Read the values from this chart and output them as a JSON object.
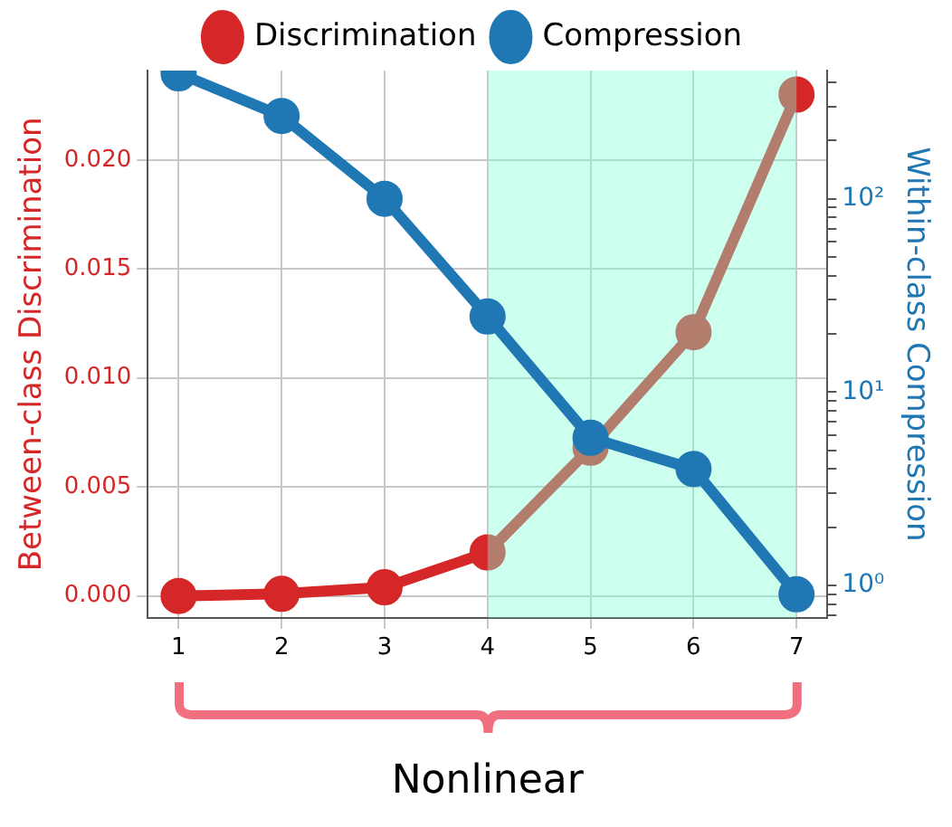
{
  "chart_data": {
    "type": "line",
    "xlabel": null,
    "ylabel": "Between-class Discrimination",
    "y2label": "Within-class Compression",
    "x": [
      1,
      2,
      3,
      4,
      5,
      6,
      7
    ],
    "series": [
      {
        "name": "Discrimination",
        "color": "#d62728",
        "values": [
          0.0,
          0.0001,
          0.0004,
          0.002,
          0.0068,
          0.0121,
          0.023
        ]
      },
      {
        "name": "Compression",
        "color": "#1f77b4",
        "axis": "y2",
        "values": [
          445,
          268,
          100,
          24.6,
          5.8,
          4.0,
          0.9
        ]
      }
    ],
    "xlim": [
      0.7,
      7.3
    ],
    "xticks": [
      1,
      2,
      3,
      4,
      5,
      6,
      7
    ],
    "ylim": [
      -0.001,
      0.0241
    ],
    "yticks": [
      {
        "value": 0,
        "label": "0.000"
      },
      {
        "value": 0.005,
        "label": "0.005"
      },
      {
        "value": 0.01,
        "label": "0.010"
      },
      {
        "value": 0.015,
        "label": "0.015"
      },
      {
        "value": 0.02,
        "label": "0.020"
      }
    ],
    "y2lim": [
      0.68,
      460
    ],
    "y2ticks": [
      {
        "value": 0.7,
        "label": null
      },
      {
        "value": 0.8,
        "label": null
      },
      {
        "value": 0.9,
        "label": null
      },
      {
        "value": 1,
        "label": "10⁰"
      },
      {
        "value": 2,
        "label": null
      },
      {
        "value": 3,
        "label": null
      },
      {
        "value": 4,
        "label": null
      },
      {
        "value": 5,
        "label": null
      },
      {
        "value": 6,
        "label": null
      },
      {
        "value": 7,
        "label": null
      },
      {
        "value": 8,
        "label": null
      },
      {
        "value": 9,
        "label": null
      },
      {
        "value": 10,
        "label": "10¹"
      },
      {
        "value": 20,
        "label": null
      },
      {
        "value": 30,
        "label": null
      },
      {
        "value": 40,
        "label": null
      },
      {
        "value": 50,
        "label": null
      },
      {
        "value": 60,
        "label": null
      },
      {
        "value": 70,
        "label": null
      },
      {
        "value": 80,
        "label": null
      },
      {
        "value": 90,
        "label": null
      },
      {
        "value": 100,
        "label": "10²"
      },
      {
        "value": 200,
        "label": null
      },
      {
        "value": 300,
        "label": null
      },
      {
        "value": 400,
        "label": null
      }
    ],
    "log": "y2",
    "grid": true,
    "legend": "top",
    "marker": "circle",
    "line_style": "solid",
    "bands": [
      {
        "axis": "x",
        "from": 4,
        "to": 7,
        "color": "#7fffd4"
      }
    ],
    "annotations": [
      "Nonlinear"
    ]
  }
}
